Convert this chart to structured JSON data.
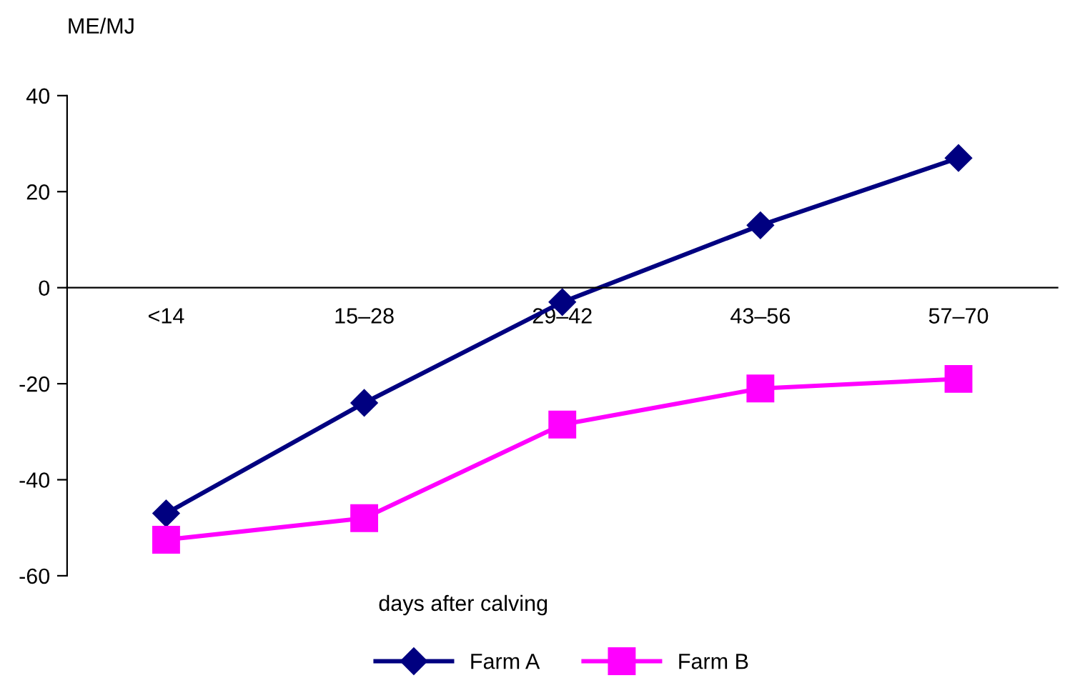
{
  "chart_data": {
    "type": "line",
    "ylabel": "ME/MJ",
    "xlabel": "days after calving",
    "categories": [
      "<14",
      "15–28",
      "29–42",
      "43–56",
      "57–70"
    ],
    "series": [
      {
        "name": "Farm A",
        "color": "#000080",
        "marker": "diamond",
        "values": [
          -47,
          -24,
          -3,
          13,
          27
        ]
      },
      {
        "name": "Farm B",
        "color": "#ff00ff",
        "marker": "square",
        "values": [
          -52.5,
          -48,
          -28.5,
          -21,
          -19
        ]
      }
    ],
    "ylim": [
      -60,
      40
    ],
    "yticks": [
      -60,
      -40,
      -20,
      0,
      20,
      40
    ],
    "grid": false,
    "legend": "bottom"
  }
}
